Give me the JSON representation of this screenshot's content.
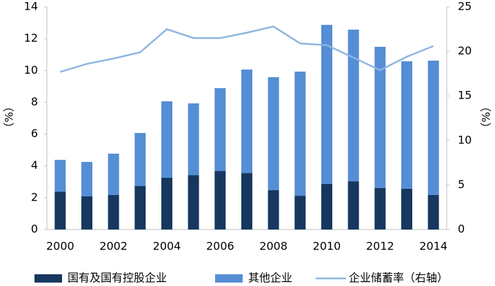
{
  "chart_data": {
    "type": "bar",
    "stacked": true,
    "y_label": "（%）",
    "y2_label": "（%）",
    "categories": [
      "2000",
      null,
      "2002",
      null,
      "2004",
      null,
      "2006",
      null,
      "2008",
      null,
      "2010",
      null,
      "2012",
      null,
      "2014"
    ],
    "series": [
      {
        "name": "国有及国有控股企业",
        "color": "#17375e",
        "values": [
          2.38,
          2.08,
          2.17,
          2.73,
          3.25,
          3.42,
          3.68,
          3.55,
          2.47,
          2.12,
          2.86,
          3.03,
          2.6,
          2.56,
          2.17
        ]
      },
      {
        "name": "其他企业",
        "color": "#558ed5",
        "values": [
          2.0,
          2.17,
          2.6,
          3.34,
          4.81,
          4.51,
          5.21,
          6.51,
          7.11,
          7.81,
          10.01,
          9.54,
          8.89,
          8.02,
          8.45
        ]
      },
      {
        "name": "企业储蓄率（右轴）",
        "color": "#8db4e2",
        "type": "line",
        "axis": "y2",
        "values": [
          17.7,
          18.6,
          19.2,
          19.9,
          22.5,
          21.5,
          21.5,
          22.1,
          22.8,
          20.9,
          20.7,
          19.3,
          17.9,
          19.4,
          20.6
        ]
      }
    ],
    "ylim": [
      0,
      14
    ],
    "yticks": [
      0,
      2,
      4,
      6,
      8,
      10,
      12,
      14
    ],
    "y2lim": [
      0,
      25
    ],
    "y2ticks": [
      0,
      5,
      10,
      15,
      20,
      25
    ],
    "grid": false,
    "legend": "bottom"
  }
}
